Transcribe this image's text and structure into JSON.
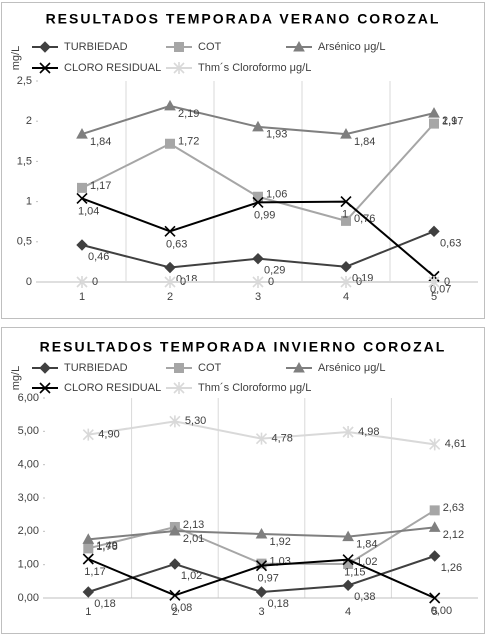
{
  "chart_data": [
    {
      "type": "line",
      "title": "RESULTADOS TEMPORADA VERANO COROZAL",
      "ylabel": "mg/L",
      "categories": [
        "1",
        "2",
        "3",
        "4",
        "5"
      ],
      "ylim": [
        0,
        2.5
      ],
      "yticks": [
        0,
        {
          "value": 0.5,
          "label": "0,5"
        },
        1,
        {
          "value": 1.5,
          "label": "1,5"
        },
        2,
        {
          "value": 2.5,
          "label": "2,5"
        }
      ],
      "series": [
        {
          "name": "TURBIEDAD",
          "color": "#404040",
          "marker": "diamond",
          "values": [
            0.46,
            0.18,
            0.29,
            0.19,
            0.63
          ],
          "value_labels": [
            "0,46",
            "0,18",
            "0,29",
            "0,19",
            "0,63"
          ]
        },
        {
          "name": "COT",
          "color": "#a6a6a6",
          "marker": "square",
          "values": [
            1.17,
            1.72,
            1.06,
            0.76,
            1.97
          ],
          "value_labels": [
            "1,17",
            "1,72",
            "1,06",
            "0,76",
            "1,97"
          ]
        },
        {
          "name": "Arsénico μg/L",
          "color": "#7f7f7f",
          "marker": "triangle",
          "values": [
            1.84,
            2.19,
            1.93,
            1.84,
            2.1
          ],
          "value_labels": [
            "1,84",
            "2,19",
            "1,93",
            "1,84",
            "2,1"
          ]
        },
        {
          "name": "CLORO RESIDUAL",
          "color": "#000000",
          "marker": "x",
          "values": [
            1.04,
            0.63,
            0.99,
            1,
            0.07
          ],
          "value_labels": [
            "1,04",
            "0,63",
            "0,99",
            "1",
            "0,07"
          ]
        },
        {
          "name": "Thm´s Cloroformo μg/L",
          "color": "#d9d9d9",
          "marker": "star",
          "values": [
            0,
            0,
            0,
            0,
            0
          ]
        }
      ]
    },
    {
      "type": "line",
      "title": "RESULTADOS TEMPORADA INVIERNO COROZAL",
      "ylabel": "mg/L",
      "categories": [
        "1",
        "2",
        "3",
        "4",
        "5"
      ],
      "ylim": [
        0,
        6
      ],
      "yticks": [
        {
          "value": 0,
          "label": "0,00"
        },
        {
          "value": 1,
          "label": "1,00"
        },
        {
          "value": 2,
          "label": "2,00"
        },
        {
          "value": 3,
          "label": "3,00"
        },
        {
          "value": 4,
          "label": "4,00"
        },
        {
          "value": 5,
          "label": "5,00"
        },
        {
          "value": 6,
          "label": "6,00"
        }
      ],
      "series": [
        {
          "name": "TURBIEDAD",
          "color": "#404040",
          "marker": "diamond",
          "values": [
            0.18,
            1.02,
            0.18,
            0.38,
            1.26
          ],
          "value_labels": [
            "0,18",
            "1,02",
            "0,18",
            "0,38",
            "1,26"
          ]
        },
        {
          "name": "COT",
          "color": "#a6a6a6",
          "marker": "square",
          "values": [
            1.49,
            2.13,
            1.03,
            1.02,
            2.63
          ],
          "value_labels": [
            "1,49",
            "2,13",
            "1,03",
            "1,02",
            "2,63"
          ]
        },
        {
          "name": "Arsénico μg/L",
          "color": "#7f7f7f",
          "marker": "triangle",
          "values": [
            1.76,
            2.01,
            1.92,
            1.84,
            2.12
          ],
          "value_labels": [
            "1,76",
            "2,01",
            "1,92",
            "1,84",
            "2,12"
          ]
        },
        {
          "name": "CLORO RESIDUAL",
          "color": "#000000",
          "marker": "x",
          "values": [
            1.17,
            0.08,
            0.97,
            1.15,
            0
          ],
          "value_labels": [
            "1,17",
            "0,08",
            "0,97",
            "1,15",
            "0,00"
          ]
        },
        {
          "name": "Thm´s Cloroformo μg/L",
          "color": "#d9d9d9",
          "marker": "star",
          "values": [
            4.9,
            5.3,
            4.78,
            4.98,
            4.61
          ],
          "value_labels": [
            "4,90",
            "5,30",
            "4,78",
            "4,98",
            "4,61"
          ]
        }
      ]
    }
  ]
}
